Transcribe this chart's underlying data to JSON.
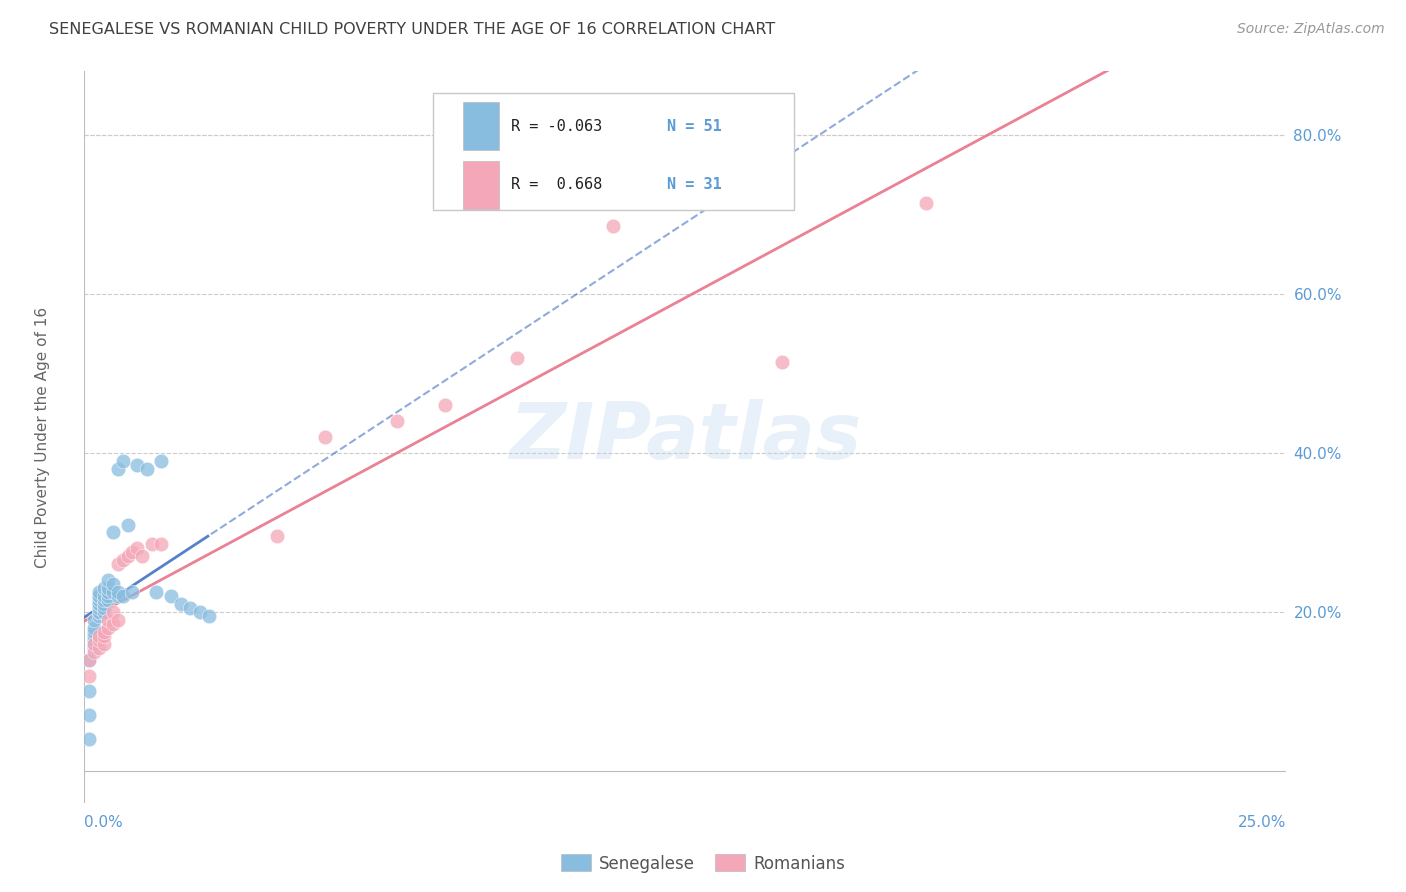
{
  "title": "SENEGALESE VS ROMANIAN CHILD POVERTY UNDER THE AGE OF 16 CORRELATION CHART",
  "source": "Source: ZipAtlas.com",
  "ylabel": "Child Poverty Under the Age of 16",
  "right_yticks": [
    "80.0%",
    "60.0%",
    "40.0%",
    "20.0%"
  ],
  "right_ytick_vals": [
    0.8,
    0.6,
    0.4,
    0.2
  ],
  "xlim": [
    0.0,
    0.25
  ],
  "ylim": [
    -0.04,
    0.88
  ],
  "watermark": "ZIPatlas",
  "senegalese_color": "#89bde0",
  "romanian_color": "#f4a7b8",
  "trend_blue_color": "#4472c4",
  "trend_pink_color": "#e8738a",
  "background_color": "#ffffff",
  "grid_color": "#cccccc",
  "axis_label_color": "#5b9bd5",
  "title_color": "#404040",
  "senegalese_x": [
    0.001,
    0.001,
    0.001,
    0.001,
    0.002,
    0.002,
    0.002,
    0.002,
    0.002,
    0.002,
    0.002,
    0.003,
    0.003,
    0.003,
    0.003,
    0.003,
    0.003,
    0.003,
    0.003,
    0.003,
    0.003,
    0.004,
    0.004,
    0.004,
    0.004,
    0.004,
    0.004,
    0.005,
    0.005,
    0.005,
    0.005,
    0.005,
    0.006,
    0.006,
    0.006,
    0.007,
    0.007,
    0.007,
    0.008,
    0.008,
    0.009,
    0.01,
    0.011,
    0.013,
    0.015,
    0.016,
    0.018,
    0.02,
    0.022,
    0.024,
    0.026
  ],
  "senegalese_y": [
    0.04,
    0.07,
    0.1,
    0.14,
    0.155,
    0.16,
    0.165,
    0.17,
    0.175,
    0.18,
    0.19,
    0.195,
    0.2,
    0.2,
    0.205,
    0.21,
    0.21,
    0.215,
    0.22,
    0.22,
    0.225,
    0.2,
    0.205,
    0.21,
    0.215,
    0.22,
    0.23,
    0.215,
    0.22,
    0.225,
    0.23,
    0.24,
    0.225,
    0.235,
    0.3,
    0.22,
    0.225,
    0.38,
    0.22,
    0.39,
    0.31,
    0.225,
    0.385,
    0.38,
    0.225,
    0.39,
    0.22,
    0.21,
    0.205,
    0.2,
    0.195
  ],
  "romanian_x": [
    0.001,
    0.001,
    0.002,
    0.002,
    0.003,
    0.003,
    0.003,
    0.004,
    0.004,
    0.004,
    0.005,
    0.005,
    0.006,
    0.006,
    0.007,
    0.007,
    0.008,
    0.009,
    0.01,
    0.011,
    0.012,
    0.014,
    0.016,
    0.04,
    0.05,
    0.065,
    0.075,
    0.09,
    0.11,
    0.145,
    0.175
  ],
  "romanian_y": [
    0.12,
    0.14,
    0.15,
    0.16,
    0.155,
    0.165,
    0.17,
    0.16,
    0.17,
    0.175,
    0.18,
    0.19,
    0.185,
    0.2,
    0.19,
    0.26,
    0.265,
    0.27,
    0.275,
    0.28,
    0.27,
    0.285,
    0.285,
    0.295,
    0.42,
    0.44,
    0.46,
    0.52,
    0.685,
    0.515,
    0.715
  ],
  "legend_r1": "R = -0.063",
  "legend_n1": "N = 51",
  "legend_r2": "R =  0.668",
  "legend_n2": "N = 31"
}
